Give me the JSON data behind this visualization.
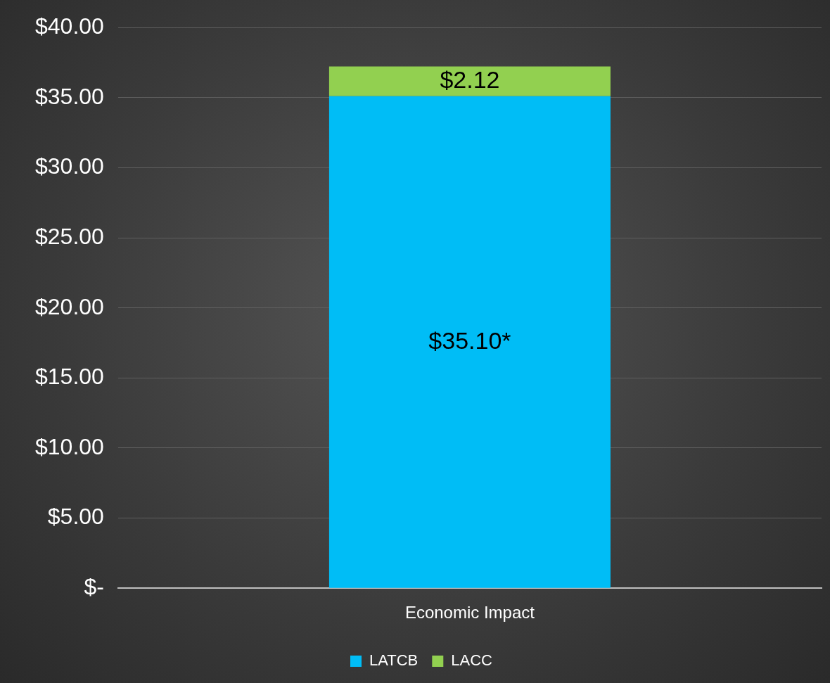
{
  "chart_data": {
    "type": "bar",
    "stacked": true,
    "categories": [
      "Economic Impact"
    ],
    "series": [
      {
        "name": "LATCB",
        "color": "#00bdf6",
        "values": [
          35.1
        ],
        "value_labels": [
          "$35.10*"
        ]
      },
      {
        "name": "LACC",
        "color": "#92d050",
        "values": [
          2.12
        ],
        "value_labels": [
          "$2.12"
        ]
      }
    ],
    "ylim": [
      0,
      40
    ],
    "yticks": [
      {
        "value": 0,
        "label": "$-"
      },
      {
        "value": 5,
        "label": "$5.00"
      },
      {
        "value": 10,
        "label": "$10.00"
      },
      {
        "value": 15,
        "label": "$15.00"
      },
      {
        "value": 20,
        "label": "$20.00"
      },
      {
        "value": 25,
        "label": "$25.00"
      },
      {
        "value": 30,
        "label": "$30.00"
      },
      {
        "value": 35,
        "label": "$35.00"
      },
      {
        "value": 40,
        "label": "$40.00"
      }
    ],
    "grid": "y",
    "legend": "bottom"
  }
}
